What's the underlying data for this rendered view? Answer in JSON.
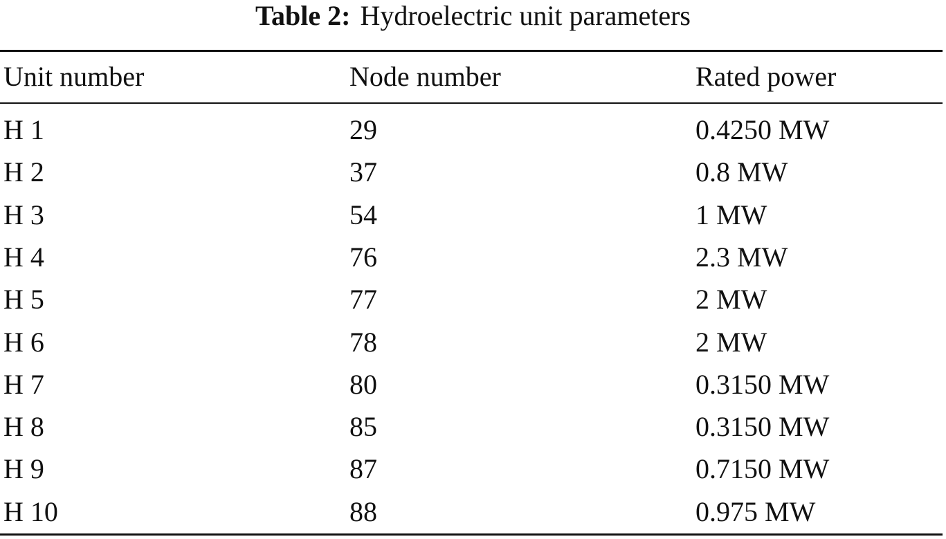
{
  "caption": {
    "label": "Table 2:",
    "text": "Hydroelectric unit parameters"
  },
  "table": {
    "header": [
      "Unit number",
      "Node number",
      "Rated power"
    ],
    "rows": [
      [
        "H 1",
        29,
        "0.4250 MW"
      ],
      [
        "H 2",
        37,
        "0.8 MW"
      ],
      [
        "H 3",
        54,
        "1 MW"
      ],
      [
        "H 4",
        76,
        "2.3 MW"
      ],
      [
        "H 5",
        77,
        "2 MW"
      ],
      [
        "H 6",
        78,
        "2 MW"
      ],
      [
        "H 7",
        80,
        "0.3150 MW"
      ],
      [
        "H 8",
        85,
        "0.3150 MW"
      ],
      [
        "H 9",
        87,
        "0.7150 MW"
      ],
      [
        "H 10",
        88,
        "0.975 MW"
      ]
    ]
  }
}
